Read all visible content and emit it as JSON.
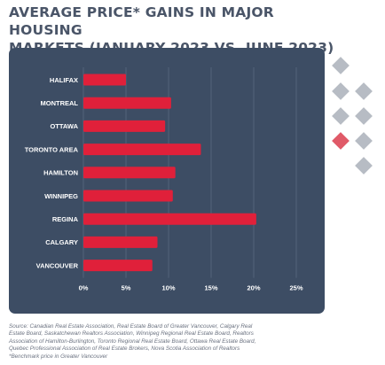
{
  "title_lines": [
    "AVERAGE PRICE* GAINS IN MAJOR HOUSING",
    "MARKETS (JANUARY 2023 VS. JUNE 2023)"
  ],
  "source_lines": [
    "Source: Canadian Real Estate Association, Real Estate Board of Greater Vancouver, Calgary Real",
    "Estate Board, Saskatchewan Realtors Association, Winnipeg Regional Real Estate Board, Realtors",
    "Association of Hamilton-Burlington, Toronto Regional Real Estate Board, Ottawa Real Estate Board,",
    "Quebec Professional Association of Real Estate Brokers, Nova Scotia Association of Realtors",
    "*Benchmark price in Greater Vancouver"
  ],
  "colors": {
    "panel": "#3d4d64",
    "bar": "#e0203a",
    "grid": "#5a6a80",
    "label": "#ffffff",
    "diamond": "#b7bcc4",
    "diamond_accent": "#e05a68"
  },
  "chart_data": {
    "type": "bar",
    "orientation": "horizontal",
    "title": "AVERAGE PRICE* GAINS IN MAJOR HOUSING MARKETS (JANUARY 2023 VS. JUNE 2023)",
    "xlabel": "",
    "ylabel": "",
    "categories": [
      "HALIFAX",
      "MONTREAL",
      "OTTAWA",
      "TORONTO AREA",
      "HAMILTON",
      "WINNIPEG",
      "REGINA",
      "CALGARY",
      "VANCOUVER"
    ],
    "values": [
      5.0,
      10.3,
      9.6,
      13.8,
      10.8,
      10.5,
      20.3,
      8.7,
      8.1
    ],
    "xlim": [
      0,
      25
    ],
    "xticks": [
      0,
      5,
      10,
      15,
      20,
      25
    ],
    "xtick_labels": [
      "0%",
      "5%",
      "10%",
      "15%",
      "20%",
      "25%"
    ],
    "grid": "vertical",
    "legend": "none"
  }
}
